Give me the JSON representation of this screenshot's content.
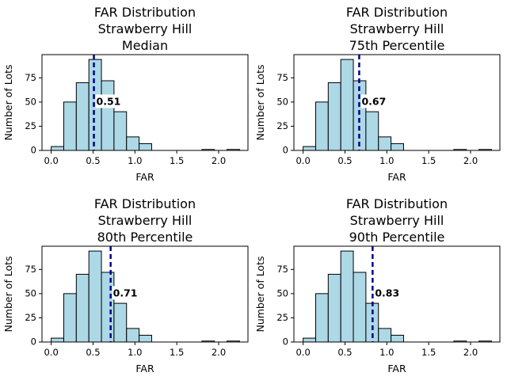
{
  "chart_data": [
    {
      "type": "bar",
      "title": [
        "FAR Distribution",
        "Strawberry Hill",
        "Median"
      ],
      "xlabel": "FAR",
      "ylabel": "Number of Lots",
      "bin_edges": [
        0.0,
        0.15,
        0.3,
        0.45,
        0.6,
        0.75,
        0.9,
        1.05,
        1.2,
        1.35,
        1.5,
        1.65,
        1.8,
        1.95,
        2.1,
        2.25
      ],
      "counts": [
        4,
        50,
        70,
        94,
        72,
        40,
        14,
        7,
        0,
        0,
        0,
        0,
        1,
        0,
        1
      ],
      "xlim": [
        -0.11,
        2.35
      ],
      "ylim": [
        0,
        99
      ],
      "xticks": [
        0.0,
        0.5,
        1.0,
        1.5,
        2.0
      ],
      "xtick_labels": [
        "0.0",
        "0.5",
        "1.0",
        "1.5",
        "2.0"
      ],
      "yticks": [
        0,
        25,
        50,
        75
      ],
      "ytick_labels": [
        "0",
        "25",
        "50",
        "75"
      ],
      "vline": 0.51,
      "annotation": "0.51",
      "bar_color": "#add8e6",
      "line_color": "#00008b"
    },
    {
      "type": "bar",
      "title": [
        "FAR Distribution",
        "Strawberry Hill",
        "75th Percentile"
      ],
      "xlabel": "FAR",
      "ylabel": "Number of Lots",
      "bin_edges": [
        0.0,
        0.15,
        0.3,
        0.45,
        0.6,
        0.75,
        0.9,
        1.05,
        1.2,
        1.35,
        1.5,
        1.65,
        1.8,
        1.95,
        2.1,
        2.25
      ],
      "counts": [
        4,
        50,
        70,
        94,
        72,
        40,
        14,
        7,
        0,
        0,
        0,
        0,
        1,
        0,
        1
      ],
      "xlim": [
        -0.11,
        2.35
      ],
      "ylim": [
        0,
        99
      ],
      "xticks": [
        0.0,
        0.5,
        1.0,
        1.5,
        2.0
      ],
      "xtick_labels": [
        "0.0",
        "0.5",
        "1.0",
        "1.5",
        "2.0"
      ],
      "yticks": [
        0,
        25,
        50,
        75
      ],
      "ytick_labels": [
        "0",
        "25",
        "50",
        "75"
      ],
      "vline": 0.67,
      "annotation": "0.67",
      "bar_color": "#add8e6",
      "line_color": "#00008b"
    },
    {
      "type": "bar",
      "title": [
        "FAR Distribution",
        "Strawberry Hill",
        "80th Percentile"
      ],
      "xlabel": "FAR",
      "ylabel": "Number of Lots",
      "bin_edges": [
        0.0,
        0.15,
        0.3,
        0.45,
        0.6,
        0.75,
        0.9,
        1.05,
        1.2,
        1.35,
        1.5,
        1.65,
        1.8,
        1.95,
        2.1,
        2.25
      ],
      "counts": [
        4,
        50,
        70,
        94,
        72,
        40,
        14,
        7,
        0,
        0,
        0,
        0,
        1,
        0,
        1
      ],
      "xlim": [
        -0.11,
        2.35
      ],
      "ylim": [
        0,
        99
      ],
      "xticks": [
        0.0,
        0.5,
        1.0,
        1.5,
        2.0
      ],
      "xtick_labels": [
        "0.0",
        "0.5",
        "1.0",
        "1.5",
        "2.0"
      ],
      "yticks": [
        0,
        25,
        50,
        75
      ],
      "ytick_labels": [
        "0",
        "25",
        "50",
        "75"
      ],
      "vline": 0.71,
      "annotation": "0.71",
      "bar_color": "#add8e6",
      "line_color": "#00008b"
    },
    {
      "type": "bar",
      "title": [
        "FAR Distribution",
        "Strawberry Hill",
        "90th Percentile"
      ],
      "xlabel": "FAR",
      "ylabel": "Number of Lots",
      "bin_edges": [
        0.0,
        0.15,
        0.3,
        0.45,
        0.6,
        0.75,
        0.9,
        1.05,
        1.2,
        1.35,
        1.5,
        1.65,
        1.8,
        1.95,
        2.1,
        2.25
      ],
      "counts": [
        4,
        50,
        70,
        94,
        72,
        40,
        14,
        7,
        0,
        0,
        0,
        0,
        1,
        0,
        1
      ],
      "xlim": [
        -0.11,
        2.35
      ],
      "ylim": [
        0,
        99
      ],
      "xticks": [
        0.0,
        0.5,
        1.0,
        1.5,
        2.0
      ],
      "xtick_labels": [
        "0.0",
        "0.5",
        "1.0",
        "1.5",
        "2.0"
      ],
      "yticks": [
        0,
        25,
        50,
        75
      ],
      "ytick_labels": [
        "0",
        "25",
        "50",
        "75"
      ],
      "vline": 0.83,
      "annotation": "0.83",
      "bar_color": "#add8e6",
      "line_color": "#00008b"
    }
  ]
}
